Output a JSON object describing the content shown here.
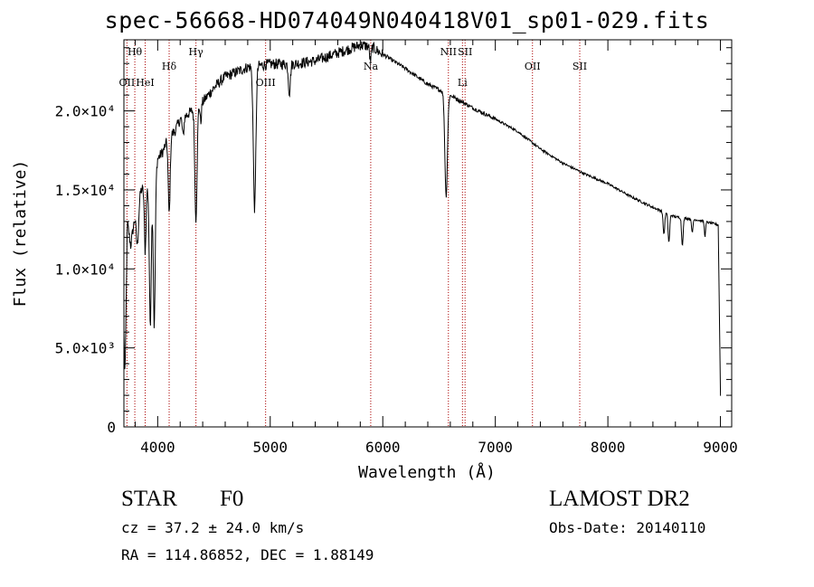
{
  "title": "spec-56668-HD074049N040418V01_sp01-029.fits",
  "info": {
    "class_label": "STAR",
    "subclass": "F0",
    "survey": "LAMOST DR2",
    "cz": "cz = 37.2 ± 24.0 km/s",
    "obs_date": "Obs-Date: 20140110",
    "radec": "RA = 114.86852, DEC =   1.88149"
  },
  "chart_data": {
    "type": "line",
    "title": "spec-56668-HD074049N040418V01_sp01-029.fits",
    "xlabel": "Wavelength (Å)",
    "ylabel": "Flux (relative)",
    "xlim": [
      3700,
      9100
    ],
    "ylim": [
      0,
      24500
    ],
    "xticks": [
      {
        "value": 4000,
        "label": "4000"
      },
      {
        "value": 5000,
        "label": "5000"
      },
      {
        "value": 6000,
        "label": "6000"
      },
      {
        "value": 7000,
        "label": "7000"
      },
      {
        "value": 8000,
        "label": "8000"
      },
      {
        "value": 9000,
        "label": "9000"
      }
    ],
    "yticks": [
      {
        "value": 0,
        "label": "0"
      },
      {
        "value": 5000,
        "label": "5.0×10³"
      },
      {
        "value": 10000,
        "label": "1.0×10⁴"
      },
      {
        "value": 15000,
        "label": "1.5×10⁴"
      },
      {
        "value": 20000,
        "label": "2.0×10⁴"
      }
    ],
    "line_color": "#000000",
    "marker_color": "#aa0000",
    "spectral_lines": [
      {
        "label": "Hθ",
        "wavelength": 3797,
        "row": "top"
      },
      {
        "label": "OII",
        "wavelength": 3727,
        "row": "lower"
      },
      {
        "label": "HeI",
        "wavelength": 3889,
        "row": "lower"
      },
      {
        "label": "Hδ",
        "wavelength": 4102,
        "row": "mid"
      },
      {
        "label": "Hγ",
        "wavelength": 4340,
        "row": "top"
      },
      {
        "label": "OIII",
        "wavelength": 4959,
        "row": "lower"
      },
      {
        "label": "Na",
        "wavelength": 5893,
        "row": "mid"
      },
      {
        "label": "NII",
        "wavelength": 6583,
        "row": "top"
      },
      {
        "label": "Li",
        "wavelength": 6708,
        "row": "lower"
      },
      {
        "label": "SII",
        "wavelength": 6731,
        "row": "top"
      },
      {
        "label": "OII",
        "wavelength": 7330,
        "row": "mid"
      },
      {
        "label": "SII",
        "wavelength": 7750,
        "row": "mid"
      }
    ],
    "continuum": [
      [
        3700,
        6000
      ],
      [
        3710,
        3000
      ],
      [
        3730,
        13000
      ],
      [
        3760,
        11500
      ],
      [
        3800,
        13500
      ],
      [
        3850,
        15000
      ],
      [
        3900,
        15200
      ],
      [
        3950,
        15000
      ],
      [
        4000,
        17000
      ],
      [
        4050,
        17500
      ],
      [
        4100,
        18500
      ],
      [
        4150,
        18700
      ],
      [
        4200,
        19500
      ],
      [
        4300,
        20000
      ],
      [
        4400,
        20600
      ],
      [
        4500,
        21500
      ],
      [
        4600,
        22200
      ],
      [
        4700,
        22500
      ],
      [
        4800,
        22800
      ],
      [
        4900,
        22900
      ],
      [
        5000,
        23000
      ],
      [
        5200,
        23000
      ],
      [
        5400,
        23200
      ],
      [
        5600,
        23700
      ],
      [
        5800,
        24200
      ],
      [
        5900,
        24100
      ],
      [
        6000,
        23600
      ],
      [
        6200,
        22700
      ],
      [
        6400,
        21700
      ],
      [
        6600,
        21000
      ],
      [
        6800,
        20200
      ],
      [
        7000,
        19500
      ],
      [
        7200,
        18700
      ],
      [
        7400,
        17600
      ],
      [
        7600,
        16700
      ],
      [
        7800,
        16000
      ],
      [
        8000,
        15400
      ],
      [
        8200,
        14600
      ],
      [
        8400,
        13900
      ],
      [
        8600,
        13300
      ],
      [
        8800,
        13100
      ],
      [
        8980,
        12800
      ],
      [
        9000,
        2000
      ]
    ],
    "absorption": [
      {
        "center": 3820,
        "depth": 2500,
        "width": 15
      },
      {
        "center": 3889,
        "depth": 4000,
        "width": 10
      },
      {
        "center": 3934,
        "depth": 8500,
        "width": 12
      },
      {
        "center": 3970,
        "depth": 9500,
        "width": 12
      },
      {
        "center": 4102,
        "depth": 5000,
        "width": 12
      },
      {
        "center": 4226,
        "depth": 1200,
        "width": 10
      },
      {
        "center": 4340,
        "depth": 7000,
        "width": 14
      },
      {
        "center": 4383,
        "depth": 1200,
        "width": 8
      },
      {
        "center": 4861,
        "depth": 9000,
        "width": 16
      },
      {
        "center": 5170,
        "depth": 1800,
        "width": 12
      },
      {
        "center": 5890,
        "depth": 900,
        "width": 10
      },
      {
        "center": 6563,
        "depth": 6500,
        "width": 16
      },
      {
        "center": 8498,
        "depth": 1400,
        "width": 10
      },
      {
        "center": 8542,
        "depth": 1800,
        "width": 10
      },
      {
        "center": 8662,
        "depth": 1700,
        "width": 10
      },
      {
        "center": 8750,
        "depth": 900,
        "width": 8
      },
      {
        "center": 8863,
        "depth": 900,
        "width": 8
      }
    ]
  }
}
